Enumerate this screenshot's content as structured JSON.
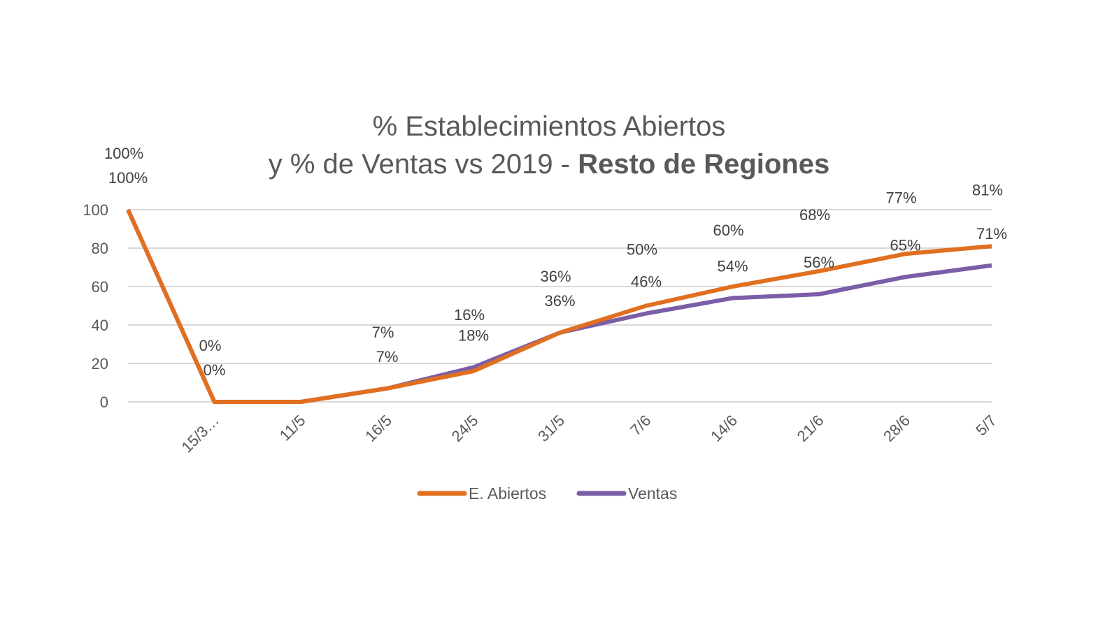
{
  "chart_data": {
    "type": "line",
    "title_line1": "% Establecimientos Abiertos",
    "title_line2_regular": "y % de Ventas vs 2019 - ",
    "title_line2_bold": "Resto de Regiones",
    "categories": [
      "",
      "15/3…",
      "11/5",
      "16/5",
      "24/5",
      "31/5",
      "7/6",
      "14/6",
      "21/6",
      "28/6",
      "5/7"
    ],
    "series": [
      {
        "name": "E. Abiertos",
        "color": "#E07020",
        "values": [
          100,
          0,
          0,
          7,
          16,
          36,
          50,
          60,
          68,
          77,
          81
        ],
        "labels": [
          "100%",
          "0%",
          "",
          "7%",
          "16%",
          "36%",
          "50%",
          "60%",
          "68%",
          "77%",
          "81%"
        ]
      },
      {
        "name": "Ventas",
        "color": "#7B5EA7",
        "values": [
          100,
          0,
          0,
          7,
          18,
          36,
          46,
          54,
          56,
          65,
          71
        ],
        "labels": [
          "100%",
          "0%",
          "",
          "7%",
          "18%",
          "36%",
          "46%",
          "54%",
          "56%",
          "65%",
          "71%"
        ]
      }
    ],
    "yticks": [
      0,
      20,
      40,
      60,
      80,
      100
    ],
    "ylim": [
      0,
      100
    ],
    "grid": true,
    "legend_position": "bottom"
  }
}
